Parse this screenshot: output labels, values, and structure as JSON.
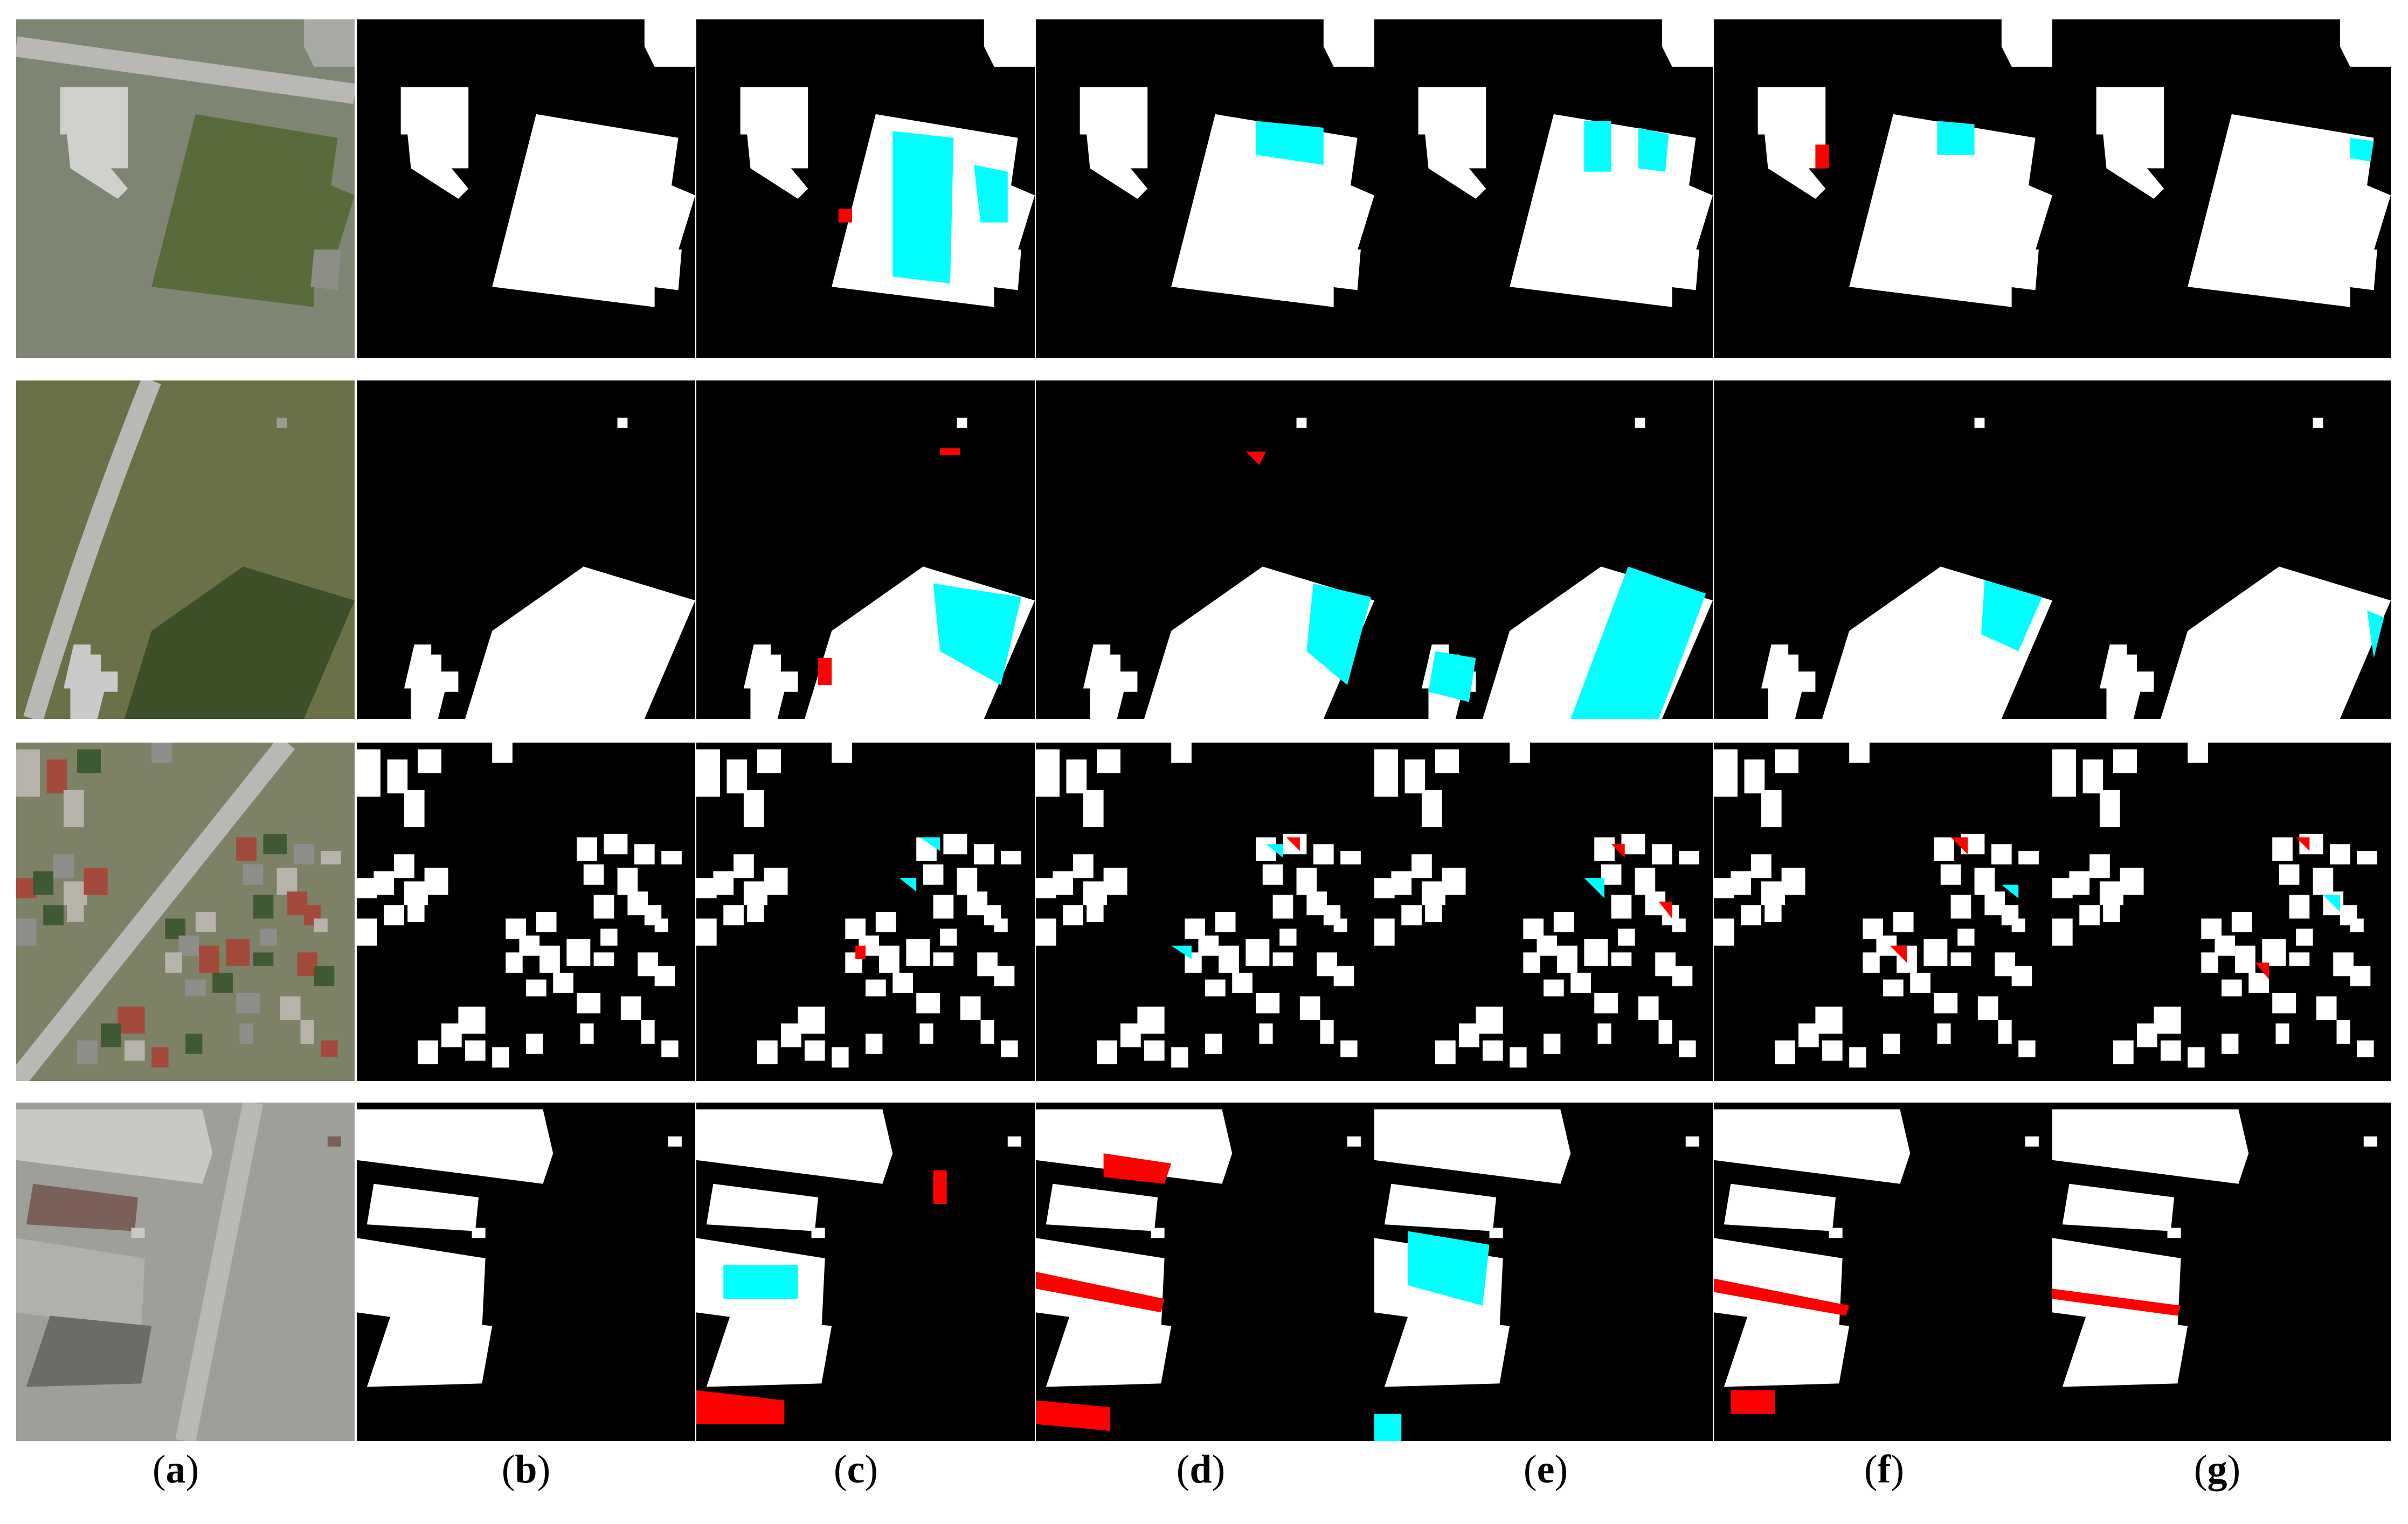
{
  "figure": {
    "panel_labels": [
      {
        "open": "(",
        "letter": "a",
        "close": ")"
      },
      {
        "open": "(",
        "letter": "b",
        "close": ")"
      },
      {
        "open": "(",
        "letter": "c",
        "close": ")"
      },
      {
        "open": "(",
        "letter": "d",
        "close": ")"
      },
      {
        "open": "(",
        "letter": "e",
        "close": ")"
      },
      {
        "open": "(",
        "letter": "f",
        "close": ")"
      },
      {
        "open": "(",
        "letter": "g",
        "close": ")"
      }
    ],
    "colors": {
      "background_mask": "#000000",
      "building": "#ffffff",
      "false_positive": "#ff0000",
      "false_negative": "#00ffff"
    }
  }
}
